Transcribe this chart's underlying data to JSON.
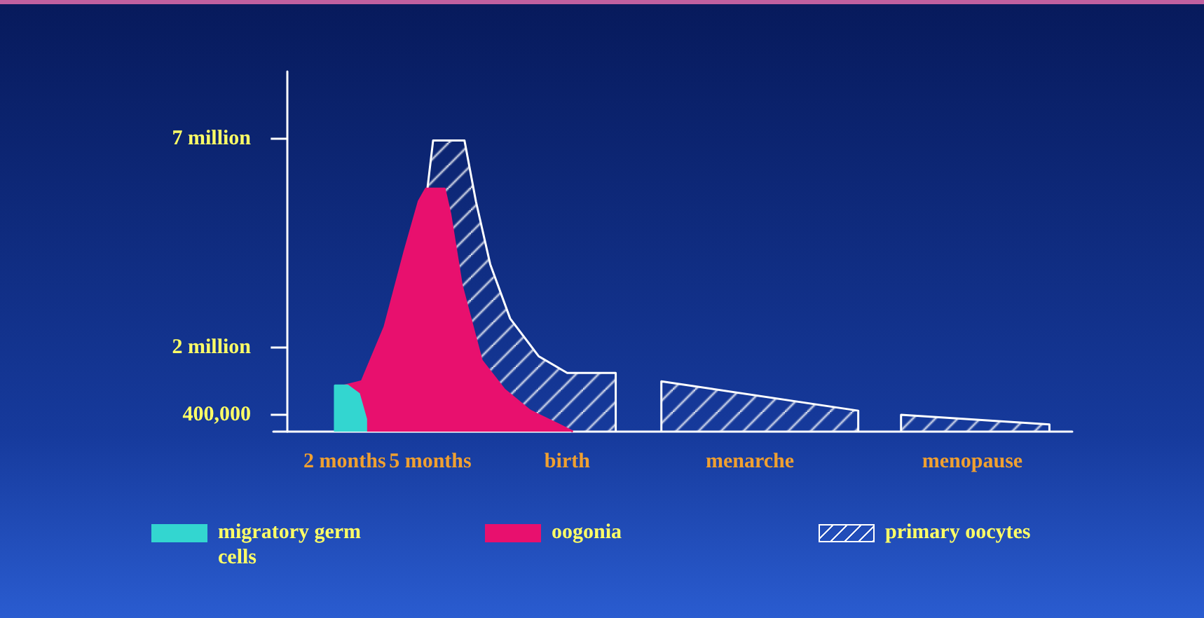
{
  "chart_data": {
    "type": "area",
    "xlim": [
      -0.5,
      27.5
    ],
    "xticks": [
      {
        "value": 2,
        "label": "2 months"
      },
      {
        "value": 5,
        "label": "5 months"
      },
      {
        "value": 9.8,
        "label": "birth"
      },
      {
        "value": 16.2,
        "label": "menarche"
      },
      {
        "value": 24,
        "label": "menopause"
      }
    ],
    "ylim": [
      0,
      8600000
    ],
    "yticks": [
      {
        "value": 400000,
        "label": "400,000"
      },
      {
        "value": 2000000,
        "label": "2 million"
      },
      {
        "value": 7000000,
        "label": "7 million"
      }
    ],
    "grid": false,
    "legend": "bottom",
    "marker": "none",
    "series": [
      {
        "name": "primary oocytes",
        "color": "#ffffff",
        "x": [
          4.9,
          5.1,
          6.2,
          6.6,
          7.1,
          7.8,
          8.8,
          9.8,
          11.5,
          11.5,
          12.3,
          13.1,
          13.1,
          20.0,
          20.0,
          20.7,
          21.5,
          21.5,
          26.7,
          26.7
        ],
        "values": [
          5800000,
          6950000,
          6950000,
          5500000,
          4000000,
          2700000,
          1800000,
          1400000,
          1400000,
          0,
          null,
          0,
          1200000,
          500000,
          0,
          null,
          0,
          400000,
          170000,
          0
        ]
      },
      {
        "name": "oogonia",
        "color": "#e8106e",
        "x": [
          2.0,
          2.6,
          3.4,
          4.1,
          4.6,
          4.85,
          5.5,
          5.7,
          6.1,
          6.8,
          7.6,
          8.5,
          9.5,
          10.0
        ],
        "values": [
          1100000,
          1200000,
          2500000,
          4300000,
          5500000,
          5800000,
          5800000,
          5200000,
          3500000,
          1700000,
          1000000,
          500000,
          170000,
          0
        ]
      },
      {
        "name": "migratory germ cells",
        "color": "#33d6d0",
        "x": [
          1.66,
          1.66,
          2.1,
          2.5,
          2.75,
          2.75
        ],
        "values": [
          0,
          1100000,
          1100000,
          900000,
          300000,
          0
        ]
      }
    ]
  }
}
